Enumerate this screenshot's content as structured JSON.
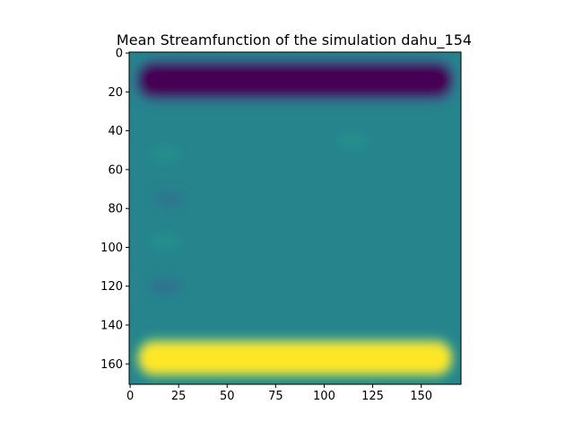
{
  "chart_data": {
    "type": "heatmap",
    "title": "Mean Streamfunction of the simulation dahu_154",
    "xlabel": "",
    "ylabel": "",
    "xlim": [
      -0.5,
      170.5
    ],
    "ylim": [
      170.5,
      -0.5
    ],
    "y_axis_inverted": true,
    "colormap": "viridis",
    "grid": false,
    "legend": "none",
    "x_ticks": [
      0,
      25,
      50,
      75,
      100,
      125,
      150
    ],
    "x_tick_labels": [
      "0",
      "25",
      "50",
      "75",
      "100",
      "125",
      "150"
    ],
    "y_ticks": [
      0,
      20,
      40,
      60,
      80,
      100,
      120,
      140,
      160
    ],
    "y_tick_labels": [
      "0",
      "20",
      "40",
      "60",
      "80",
      "100",
      "120",
      "140",
      "160"
    ],
    "normalized_value_range": [
      0,
      1
    ],
    "background_level": 0.45,
    "features": [
      {
        "name": "minimum band",
        "x_range": [
          5,
          165
        ],
        "y_center": 14,
        "level": 0.0
      },
      {
        "name": "weak low",
        "x_center": 18,
        "y_center": 52,
        "level": 0.5
      },
      {
        "name": "weak low",
        "x_center": 115,
        "y_center": 45,
        "level": 0.5
      },
      {
        "name": "weak minimum",
        "x_center": 20,
        "y_center": 75,
        "level": 0.38
      },
      {
        "name": "weak high",
        "x_center": 18,
        "y_center": 97,
        "level": 0.5
      },
      {
        "name": "weak minimum",
        "x_center": 18,
        "y_center": 120,
        "level": 0.36
      },
      {
        "name": "maximum band",
        "x_range": [
          5,
          165
        ],
        "y_center": 157,
        "level": 1.0
      }
    ]
  }
}
